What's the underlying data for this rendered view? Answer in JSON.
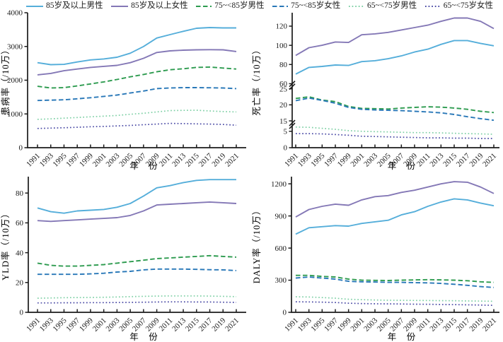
{
  "figure": {
    "background": "#ffffff"
  },
  "style": {
    "axis_color": "#1b1b1b",
    "text_color": "#1b1b1b"
  },
  "legend": {
    "items": [
      {
        "id": "male-85plus",
        "label": "85岁及以上男性",
        "color": "#55AEDA",
        "dash": "solid"
      },
      {
        "id": "female-85plus",
        "label": "85岁及以上女性",
        "color": "#8478B6",
        "dash": "solid"
      },
      {
        "id": "male-75-85",
        "label": "75~<85岁男性",
        "color": "#2D9B4F",
        "dash": "dashed"
      },
      {
        "id": "female-75-85",
        "label": "75~<85岁女性",
        "color": "#2978B8",
        "dash": "dashed"
      },
      {
        "id": "male-65-75",
        "label": "65~<75岁男性",
        "color": "#7ED0A5",
        "dash": "dotted"
      },
      {
        "id": "female-65-75",
        "label": "65~<75岁女性",
        "color": "#4A4AA5",
        "dash": "dotted"
      }
    ]
  },
  "chart_data": [
    {
      "type": "line",
      "id": "prevalence",
      "ylabel": "患病率（/10万）",
      "xlabel": "年　份",
      "x": [
        1991,
        1993,
        1995,
        1997,
        1999,
        2001,
        2003,
        2005,
        2007,
        2009,
        2011,
        2013,
        2015,
        2017,
        2019,
        2021
      ],
      "grid": false,
      "legend_position": "top",
      "segments": [
        {
          "domain": [
            0,
            4000
          ],
          "frac": 1,
          "ticks": [
            0,
            1000,
            2000,
            3000,
            4000
          ]
        }
      ],
      "series": [
        {
          "name": "85岁及以上男性",
          "values": [
            2520,
            2460,
            2470,
            2540,
            2600,
            2630,
            2680,
            2800,
            3000,
            3250,
            3350,
            3450,
            3540,
            3560,
            3550,
            3550
          ]
        },
        {
          "name": "85岁及以上女性",
          "values": [
            2160,
            2200,
            2280,
            2330,
            2380,
            2410,
            2440,
            2520,
            2650,
            2820,
            2870,
            2890,
            2900,
            2905,
            2900,
            2850
          ]
        },
        {
          "name": "75~<85岁男性",
          "values": [
            1820,
            1770,
            1780,
            1830,
            1890,
            1950,
            2020,
            2100,
            2170,
            2250,
            2310,
            2340,
            2380,
            2390,
            2360,
            2330
          ]
        },
        {
          "name": "75~<85岁女性",
          "values": [
            1400,
            1410,
            1420,
            1450,
            1480,
            1520,
            1560,
            1620,
            1680,
            1750,
            1770,
            1780,
            1780,
            1775,
            1770,
            1750
          ]
        },
        {
          "name": "65~<75岁男性",
          "values": [
            840,
            855,
            875,
            895,
            915,
            935,
            955,
            990,
            1020,
            1060,
            1100,
            1105,
            1110,
            1090,
            1070,
            1060
          ]
        },
        {
          "name": "65~<75岁女性",
          "values": [
            570,
            580,
            590,
            605,
            620,
            630,
            645,
            660,
            680,
            700,
            720,
            715,
            705,
            700,
            690,
            665
          ]
        }
      ]
    },
    {
      "type": "line",
      "id": "mortality",
      "ylabel": "死亡率（/10万）",
      "xlabel": "年　份",
      "x": [
        1991,
        1993,
        1995,
        1997,
        1999,
        2001,
        2003,
        2005,
        2007,
        2009,
        2011,
        2013,
        2015,
        2017,
        2019,
        2021
      ],
      "grid": false,
      "axis_break": true,
      "segments": [
        {
          "domain": [
            0,
            7
          ],
          "frac": 0.17,
          "ticks": [
            0,
            5
          ]
        },
        {
          "domain": [
            13.8,
            26
          ],
          "frac": 0.29,
          "ticks": [
            15,
            20,
            25
          ]
        },
        {
          "domain": [
            58,
            134
          ],
          "frac": 0.54,
          "ticks": [
            60,
            80,
            100,
            120
          ]
        }
      ],
      "series": [
        {
          "name": "85岁及以上男性",
          "values": [
            70,
            77,
            78,
            79.5,
            79,
            83,
            84,
            86,
            89,
            93,
            96,
            101,
            105,
            105,
            102,
            99.5
          ]
        },
        {
          "name": "85岁及以上女性",
          "values": [
            89.5,
            97.5,
            100,
            103.5,
            103,
            111,
            112,
            113.5,
            116,
            118.5,
            121,
            125,
            128.5,
            128.5,
            125,
            117.5
          ]
        },
        {
          "name": "75~<85岁男性",
          "values": [
            22,
            22.5,
            21.5,
            21,
            19.5,
            18.9,
            18.8,
            18.7,
            19,
            19.2,
            19.4,
            19.3,
            19,
            18.6,
            18,
            17.6
          ]
        },
        {
          "name": "75~<85岁女性",
          "values": [
            21.3,
            22.1,
            21.4,
            20.5,
            19.2,
            18.6,
            18.4,
            18.3,
            18.2,
            18,
            17.8,
            17.5,
            17,
            16.3,
            15.7,
            15.2
          ]
        },
        {
          "name": "65~<75岁男性",
          "values": [
            6.3,
            6.2,
            5.9,
            5.6,
            5.2,
            5,
            4.9,
            4.8,
            4.7,
            4.6,
            4.6,
            4.5,
            4.4,
            4.3,
            4.2,
            4.1
          ]
        },
        {
          "name": "65~<75岁女性",
          "values": [
            4.3,
            4.3,
            4.2,
            4,
            3.8,
            3.5,
            3.4,
            3.3,
            3.2,
            3.1,
            3,
            3,
            2.9,
            2.9,
            2.8,
            2.8
          ]
        }
      ]
    },
    {
      "type": "line",
      "id": "yld",
      "ylabel": "YLD率（/10万）",
      "xlabel": "年　份",
      "x": [
        1991,
        1993,
        1995,
        1997,
        1999,
        2001,
        2003,
        2005,
        2007,
        2009,
        2011,
        2013,
        2015,
        2017,
        2019,
        2021
      ],
      "grid": false,
      "segments": [
        {
          "domain": [
            0,
            91
          ],
          "frac": 1,
          "ticks": [
            0,
            20,
            40,
            60,
            80
          ]
        }
      ],
      "series": [
        {
          "name": "85岁及以上男性",
          "values": [
            70,
            67.5,
            66.5,
            68,
            68.5,
            69,
            70.5,
            73,
            78,
            83.5,
            85,
            87,
            88.5,
            89,
            89,
            89
          ]
        },
        {
          "name": "85岁及以上女性",
          "values": [
            61.5,
            61,
            61.5,
            62,
            62.5,
            63,
            63.5,
            65,
            68,
            72,
            72.5,
            73,
            73.5,
            74,
            73.5,
            73
          ]
        },
        {
          "name": "75~<85岁男性",
          "values": [
            33,
            31.5,
            31,
            31,
            31.5,
            32,
            33,
            34,
            35,
            36,
            36.5,
            37,
            37.5,
            38,
            37.5,
            37
          ]
        },
        {
          "name": "75~<85岁女性",
          "values": [
            25.5,
            25.5,
            25.5,
            25.5,
            25.8,
            26.2,
            27,
            27.5,
            28.5,
            29,
            29,
            29,
            28.8,
            28.6,
            28.5,
            28
          ]
        },
        {
          "name": "65~<75岁男性",
          "values": [
            9.5,
            9.6,
            9.8,
            9.9,
            10,
            10.1,
            10.3,
            10.5,
            10.7,
            10.9,
            11,
            11,
            11,
            10.9,
            10.7,
            10.5
          ]
        },
        {
          "name": "65~<75岁女性",
          "values": [
            6.3,
            6.3,
            6.4,
            6.4,
            6.5,
            6.5,
            6.6,
            6.7,
            6.8,
            6.9,
            7,
            7,
            6.9,
            6.9,
            6.8,
            6.7
          ]
        }
      ]
    },
    {
      "type": "line",
      "id": "daly",
      "ylabel": "DALY率（/10万）",
      "xlabel": "年　份",
      "x": [
        1991,
        1993,
        1995,
        1997,
        1999,
        2001,
        2003,
        2005,
        2007,
        2009,
        2011,
        2013,
        2015,
        2017,
        2019,
        2021
      ],
      "grid": false,
      "segments": [
        {
          "domain": [
            0,
            1267
          ],
          "frac": 1,
          "ticks": [
            0,
            300,
            600,
            900,
            1200
          ]
        }
      ],
      "series": [
        {
          "name": "85岁及以上男性",
          "values": [
            730,
            790,
            800,
            810,
            805,
            830,
            845,
            860,
            910,
            940,
            990,
            1030,
            1060,
            1050,
            1020,
            995
          ]
        },
        {
          "name": "85岁及以上女性",
          "values": [
            890,
            960,
            990,
            1010,
            1000,
            1050,
            1080,
            1090,
            1120,
            1140,
            1170,
            1200,
            1220,
            1215,
            1170,
            1110
          ]
        },
        {
          "name": "75~<85岁男性",
          "values": [
            345,
            345,
            335,
            330,
            310,
            300,
            298,
            297,
            300,
            303,
            305,
            303,
            300,
            295,
            285,
            280
          ]
        },
        {
          "name": "75~<85岁女性",
          "values": [
            320,
            330,
            320,
            310,
            290,
            285,
            283,
            280,
            280,
            277,
            275,
            270,
            262,
            252,
            240,
            232
          ]
        },
        {
          "name": "65~<75岁男性",
          "values": [
            145,
            143,
            138,
            132,
            122,
            118,
            115,
            113,
            112,
            111,
            110,
            109,
            108,
            106,
            105,
            103
          ]
        },
        {
          "name": "65~<75岁女性",
          "values": [
            98,
            97,
            95,
            92,
            85,
            82,
            80,
            79,
            78,
            76,
            75,
            73,
            72,
            70,
            68,
            65
          ]
        }
      ]
    }
  ]
}
